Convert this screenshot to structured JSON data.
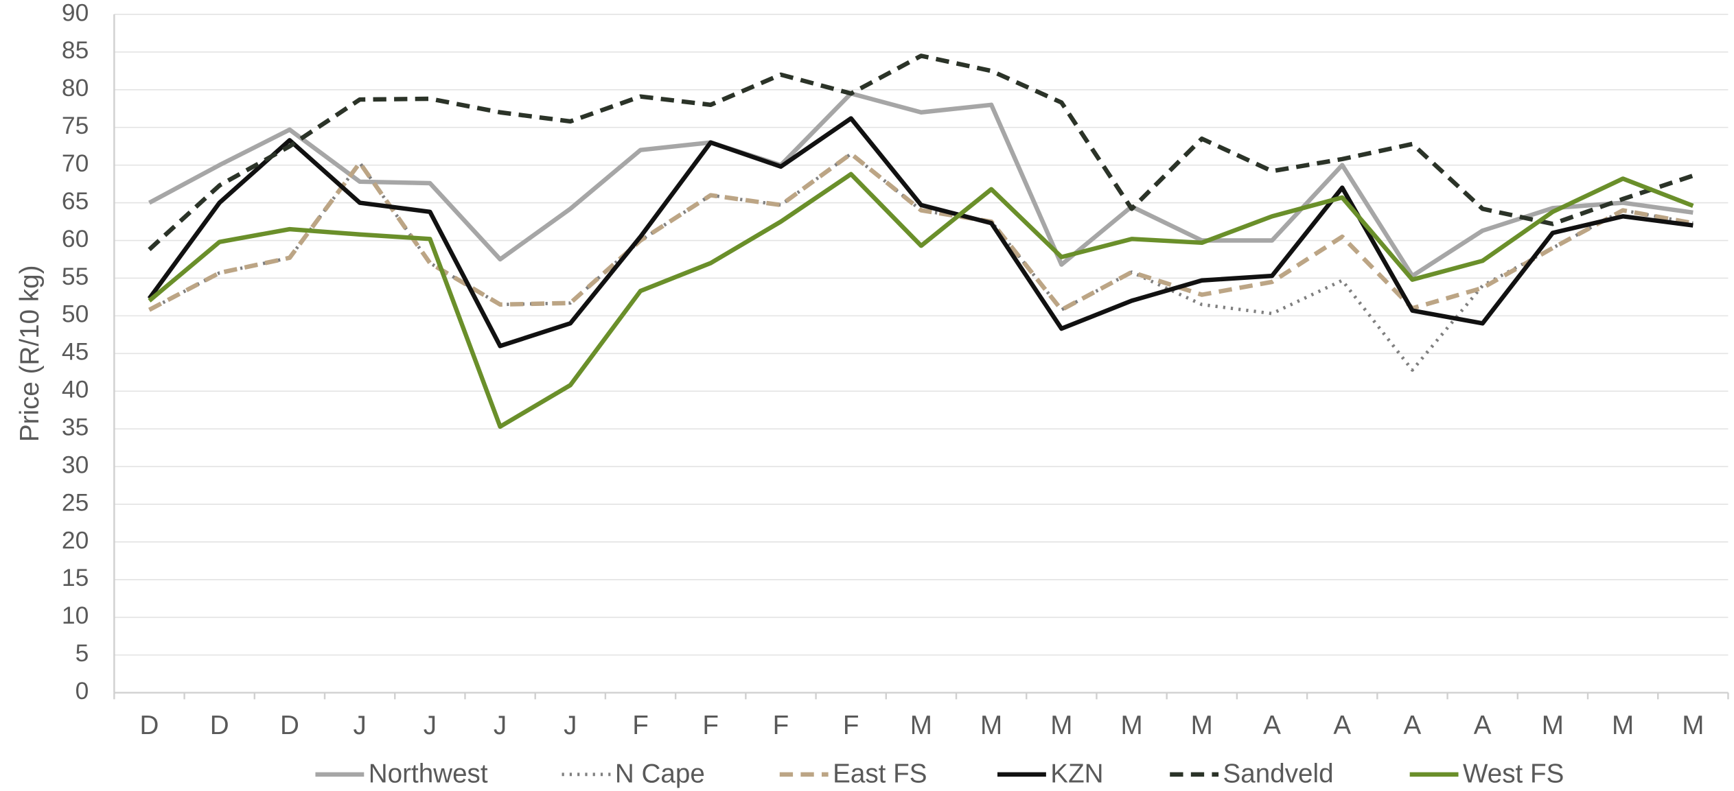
{
  "chart_data": {
    "type": "line",
    "y_label": "Price (R/10 kg)",
    "categories": [
      "D",
      "D",
      "D",
      "J",
      "J",
      "J",
      "J",
      "F",
      "F",
      "F",
      "F",
      "M",
      "M",
      "M",
      "M",
      "M",
      "A",
      "A",
      "A",
      "A",
      "M",
      "M",
      "M"
    ],
    "ylim": [
      0,
      90
    ],
    "yticks": [
      0,
      5,
      10,
      15,
      20,
      25,
      30,
      35,
      40,
      45,
      50,
      55,
      60,
      65,
      70,
      75,
      80,
      85,
      90
    ],
    "grid": true,
    "legend": "bottom",
    "series": [
      {
        "name": "Northwest",
        "color": "#a6a6a6",
        "dash": "solid",
        "values": [
          65,
          70,
          74.7,
          67.8,
          67.6,
          57.5,
          64.2,
          72,
          73,
          70,
          79.5,
          77,
          78,
          56.8,
          64.5,
          60,
          60,
          70,
          55.3,
          61.3,
          64.3,
          65,
          63.7
        ]
      },
      {
        "name": "N Cape",
        "color": "#7f7f7f",
        "dash": "dotted",
        "values": [
          50.8,
          55.7,
          57.7,
          70.3,
          57,
          51.5,
          51.7,
          60,
          66,
          64.7,
          71.5,
          64,
          62.5,
          50.8,
          55.8,
          51.5,
          50.3,
          54.7,
          42.8,
          54,
          59,
          64,
          62.3
        ]
      },
      {
        "name": "East FS",
        "color": "#bca585",
        "dash": "dashed",
        "values": [
          50.8,
          55.7,
          57.7,
          70.3,
          57,
          51.5,
          51.7,
          60,
          66,
          64.7,
          71.5,
          64,
          62.5,
          50.8,
          55.8,
          52.8,
          54.5,
          60.5,
          51,
          53.7,
          59,
          64,
          62.3
        ]
      },
      {
        "name": "KZN",
        "color": "#111111",
        "dash": "solid",
        "values": [
          52.3,
          65,
          73.3,
          65,
          63.8,
          46,
          49,
          60.5,
          73,
          69.8,
          76.2,
          64.7,
          62.3,
          48.3,
          52,
          54.7,
          55.3,
          67,
          50.7,
          49,
          61,
          63.2,
          62
        ]
      },
      {
        "name": "Sandveld",
        "color": "#2b3328",
        "dash": "dashed",
        "values": [
          58.8,
          67.3,
          72.5,
          78.7,
          78.8,
          77,
          75.8,
          79.1,
          78,
          82,
          79.5,
          84.5,
          82.5,
          78.3,
          64.2,
          73.5,
          69.2,
          70.8,
          72.8,
          64.2,
          62.2,
          65.5,
          68.6
        ]
      },
      {
        "name": "West FS",
        "color": "#6a8f2a",
        "dash": "solid",
        "values": [
          52,
          59.8,
          61.5,
          60.8,
          60.2,
          35.3,
          40.8,
          53.3,
          57,
          62.5,
          68.8,
          59.3,
          66.8,
          57.8,
          60.2,
          59.7,
          63.2,
          65.7,
          54.8,
          57.3,
          63.8,
          68.2,
          64.6
        ]
      }
    ]
  }
}
